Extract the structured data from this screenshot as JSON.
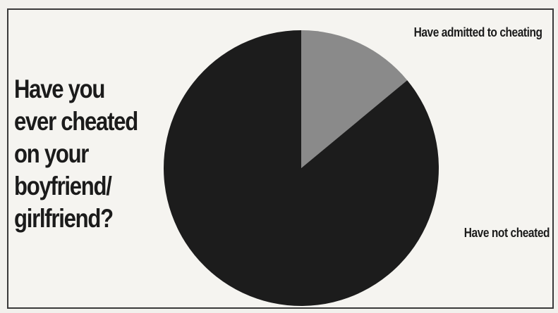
{
  "chart_data": {
    "type": "pie",
    "title_lines": [
      "Have you",
      "ever cheated",
      "on your",
      "boyfriend/",
      "girlfriend?"
    ],
    "slices": [
      {
        "label": "Have admitted to cheating",
        "value": 14,
        "color": "#8a8a8a"
      },
      {
        "label": "Have not cheated",
        "value": 86,
        "color": "#1c1c1c"
      }
    ],
    "start_angle_deg": 0,
    "direction": "clockwise"
  }
}
